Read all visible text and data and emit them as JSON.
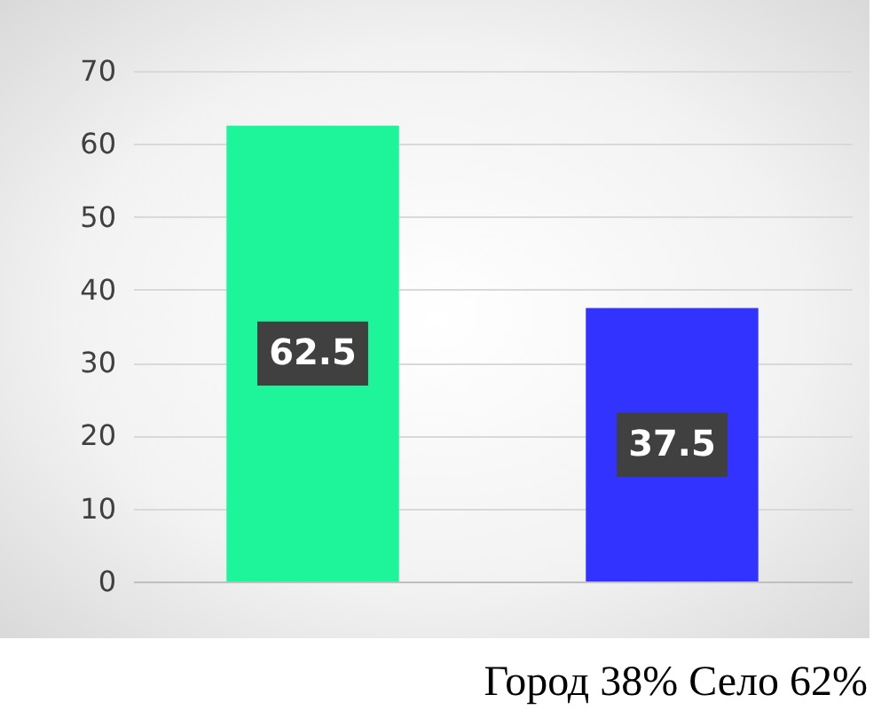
{
  "chart_data": {
    "type": "bar",
    "categories": [
      null,
      null
    ],
    "values": [
      62.5,
      37.5
    ],
    "colors": [
      "#1ef59a",
      "#3333ff"
    ],
    "ylim": [
      0,
      70
    ],
    "yticks": [
      0,
      10,
      20,
      30,
      40,
      50,
      60,
      70
    ],
    "grid": "y",
    "data_labels": true,
    "annotations": [
      "Город 38% Село 62%"
    ]
  }
}
